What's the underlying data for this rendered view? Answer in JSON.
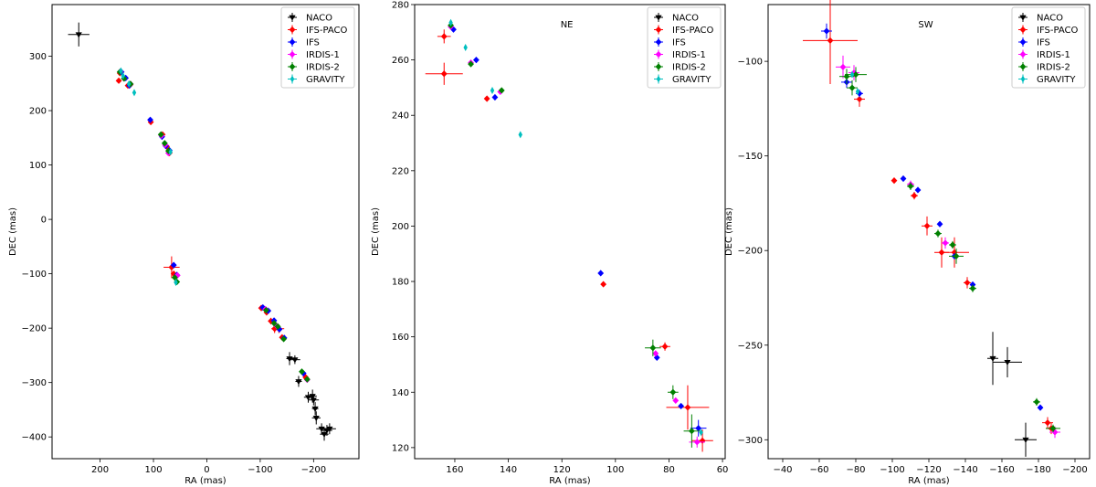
{
  "legend_entries": [
    {
      "name": "NACO",
      "color": "#000000",
      "marker": "triangle-down"
    },
    {
      "name": "IFS-PACO",
      "color": "#ff0000",
      "marker": "diamond"
    },
    {
      "name": "IFS",
      "color": "#0000ff",
      "marker": "diamond"
    },
    {
      "name": "IRDIS-1",
      "color": "#ff00ff",
      "marker": "diamond"
    },
    {
      "name": "IRDIS-2",
      "color": "#008000",
      "marker": "diamond"
    },
    {
      "name": "GRAVITY",
      "color": "#00bfbf",
      "marker": "thin-diamond"
    }
  ],
  "chart_data": [
    {
      "type": "scatter",
      "title": "",
      "xlabel": "RA (mas)",
      "ylabel": "DEC (mas)",
      "xlim": [
        290,
        -285
      ],
      "ylim": [
        -440,
        395
      ],
      "xticks": [
        200,
        100,
        0,
        -100,
        -200
      ],
      "xtick_labels": [
        "200",
        "100",
        "0",
        "−100",
        "−200"
      ],
      "yticks": [
        -400,
        -300,
        -200,
        -100,
        0,
        100,
        200,
        300
      ],
      "ytick_labels": [
        "−400",
        "−300",
        "−200",
        "−100",
        "0",
        "100",
        "200",
        "300"
      ],
      "legend": "top-right",
      "series": [
        {
          "name": "NACO",
          "points": [
            {
              "x": 240,
              "y": 340,
              "xe": 20,
              "ye": 22
            },
            {
              "x": -155,
              "y": -256,
              "xe": 6,
              "ye": 12
            },
            {
              "x": -165,
              "y": -258,
              "xe": 10,
              "ye": 8
            },
            {
              "x": -172,
              "y": -298,
              "xe": 6,
              "ye": 10
            },
            {
              "x": -190,
              "y": -327,
              "xe": 8,
              "ye": 10
            },
            {
              "x": -198,
              "y": -325,
              "xe": 8,
              "ye": 12
            },
            {
              "x": -200,
              "y": -332,
              "xe": 10,
              "ye": 10
            },
            {
              "x": -203,
              "y": -348,
              "xe": 6,
              "ye": 12
            },
            {
              "x": -205,
              "y": -365,
              "xe": 8,
              "ye": 12
            },
            {
              "x": -215,
              "y": -385,
              "xe": 10,
              "ye": 10
            },
            {
              "x": -220,
              "y": -395,
              "xe": 8,
              "ye": 12
            },
            {
              "x": -225,
              "y": -388,
              "xe": 10,
              "ye": 10
            },
            {
              "x": -230,
              "y": -385,
              "xe": 12,
              "ye": 10
            }
          ]
        },
        {
          "name": "IFS-PACO",
          "points": [
            {
              "x": 165,
              "y": 255
            },
            {
              "x": 163,
              "y": 269
            },
            {
              "x": 148,
              "y": 246
            },
            {
              "x": 143,
              "y": 248
            },
            {
              "x": 105,
              "y": 179
            },
            {
              "x": 83,
              "y": 156
            },
            {
              "x": 75,
              "y": 134
            },
            {
              "x": 70,
              "y": 122
            },
            {
              "x": 66,
              "y": -88,
              "xe": 15,
              "ye": 20
            },
            {
              "x": 62,
              "y": -100,
              "xe": 4,
              "ye": 4
            },
            {
              "x": -102,
              "y": -163
            },
            {
              "x": -112,
              "y": -171
            },
            {
              "x": -120,
              "y": -187,
              "xe": 5,
              "ye": 6
            },
            {
              "x": -127,
              "y": -201,
              "xe": 6,
              "ye": 8
            },
            {
              "x": -135,
              "y": -201,
              "xe": 10,
              "ye": 8
            },
            {
              "x": -141,
              "y": -217
            },
            {
              "x": -185,
              "y": -290
            },
            {
              "x": -187,
              "y": -293
            }
          ]
        },
        {
          "name": "IFS",
          "points": [
            {
              "x": 160,
              "y": 271
            },
            {
              "x": 152,
              "y": 260
            },
            {
              "x": 145,
              "y": 246
            },
            {
              "x": 106,
              "y": 183
            },
            {
              "x": 84,
              "y": 152
            },
            {
              "x": 77,
              "y": 135
            },
            {
              "x": 70,
              "y": 127
            },
            {
              "x": 62,
              "y": -84,
              "xe": 4,
              "ye": 4
            },
            {
              "x": 56,
              "y": -102
            },
            {
              "x": -105,
              "y": -162
            },
            {
              "x": -115,
              "y": -168
            },
            {
              "x": -126,
              "y": -186
            },
            {
              "x": -136,
              "y": -202
            },
            {
              "x": -145,
              "y": -218
            },
            {
              "x": -181,
              "y": -283
            }
          ]
        },
        {
          "name": "IRDIS-1",
          "points": [
            {
              "x": 162,
              "y": 272
            },
            {
              "x": 155,
              "y": 259
            },
            {
              "x": 143,
              "y": 249
            },
            {
              "x": 85,
              "y": 154
            },
            {
              "x": 78,
              "y": 137
            },
            {
              "x": 72,
              "y": 122
            },
            {
              "x": 55,
              "y": -103
            },
            {
              "x": -110,
              "y": -165
            },
            {
              "x": -130,
              "y": -195
            },
            {
              "x": -188,
              "y": -295
            }
          ]
        },
        {
          "name": "IRDIS-2",
          "points": [
            {
              "x": 163,
              "y": 271
            },
            {
              "x": 155,
              "y": 259
            },
            {
              "x": 143,
              "y": 249
            },
            {
              "x": 86,
              "y": 156
            },
            {
              "x": 79,
              "y": 140
            },
            {
              "x": 72,
              "y": 126
            },
            {
              "x": 60,
              "y": -107
            },
            {
              "x": 56,
              "y": -115
            },
            {
              "x": -111,
              "y": -167
            },
            {
              "x": -126,
              "y": -191
            },
            {
              "x": -133,
              "y": -197
            },
            {
              "x": -144,
              "y": -220
            },
            {
              "x": -178,
              "y": -280
            },
            {
              "x": -188,
              "y": -294
            }
          ]
        },
        {
          "name": "GRAVITY",
          "points": [
            {
              "x": 161,
              "y": 273
            },
            {
              "x": 157,
              "y": 264
            },
            {
              "x": 146,
              "y": 249
            },
            {
              "x": 136,
              "y": 233
            },
            {
              "x": 68,
              "y": 124
            },
            {
              "x": 58,
              "y": -116
            }
          ]
        }
      ]
    },
    {
      "type": "scatter",
      "title": "NE",
      "xlabel": "RA (mas)",
      "ylabel": "DEC (mas)",
      "xlim": [
        175,
        59
      ],
      "ylim": [
        116,
        280
      ],
      "xticks": [
        160,
        140,
        120,
        100,
        80,
        60
      ],
      "xtick_labels": [
        "160",
        "140",
        "120",
        "100",
        "80",
        "60"
      ],
      "yticks": [
        120,
        140,
        160,
        180,
        200,
        220,
        240,
        260,
        280
      ],
      "ytick_labels": [
        "120",
        "140",
        "160",
        "180",
        "200",
        "220",
        "240",
        "260",
        "280"
      ],
      "legend": "top-right",
      "series": [
        {
          "name": "NACO",
          "points": []
        },
        {
          "name": "IFS-PACO",
          "points": [
            {
              "x": 164,
              "y": 268.5,
              "xe": 2.5,
              "ye": 2.5
            },
            {
              "x": 164,
              "y": 255,
              "xe": 7,
              "ye": 4
            },
            {
              "x": 148,
              "y": 246
            },
            {
              "x": 104.5,
              "y": 179
            },
            {
              "x": 81.5,
              "y": 156.5,
              "xe": 2,
              "ye": 1.5
            },
            {
              "x": 73,
              "y": 134.5,
              "xe": 8,
              "ye": 8
            },
            {
              "x": 67.5,
              "y": 122.5,
              "xe": 4,
              "ye": 4
            }
          ]
        },
        {
          "name": "IFS",
          "points": [
            {
              "x": 160.5,
              "y": 271
            },
            {
              "x": 152,
              "y": 260
            },
            {
              "x": 145,
              "y": 246.5
            },
            {
              "x": 105.5,
              "y": 183
            },
            {
              "x": 84.5,
              "y": 152.5
            },
            {
              "x": 75.5,
              "y": 135
            },
            {
              "x": 69,
              "y": 127,
              "xe": 3,
              "ye": 3
            }
          ]
        },
        {
          "name": "IRDIS-1",
          "points": [
            {
              "x": 161.5,
              "y": 272
            },
            {
              "x": 154,
              "y": 259
            },
            {
              "x": 143,
              "y": 248.5
            },
            {
              "x": 85,
              "y": 154
            },
            {
              "x": 77.5,
              "y": 137
            },
            {
              "x": 69.5,
              "y": 122,
              "xe": 3,
              "ye": 2
            }
          ]
        },
        {
          "name": "IRDIS-2",
          "points": [
            {
              "x": 161.5,
              "y": 272.5
            },
            {
              "x": 154,
              "y": 258.5
            },
            {
              "x": 142.5,
              "y": 249
            },
            {
              "x": 86,
              "y": 156,
              "xe": 3,
              "ye": 3
            },
            {
              "x": 78.5,
              "y": 140,
              "xe": 2,
              "ye": 2.5
            },
            {
              "x": 71.5,
              "y": 126,
              "xe": 3,
              "ye": 6
            }
          ]
        },
        {
          "name": "GRAVITY",
          "points": [
            {
              "x": 161.5,
              "y": 273.5
            },
            {
              "x": 156,
              "y": 264.5
            },
            {
              "x": 146,
              "y": 249
            },
            {
              "x": 135.5,
              "y": 233
            },
            {
              "x": 68,
              "y": 125.5
            }
          ]
        }
      ]
    },
    {
      "type": "scatter",
      "title": "SW",
      "xlabel": "RA (mas)",
      "ylabel": "DEC (mas)",
      "xlim": [
        -32,
        -208
      ],
      "ylim": [
        -310,
        -70
      ],
      "xticks": [
        -40,
        -60,
        -80,
        -100,
        -120,
        -140,
        -160,
        -180,
        -200
      ],
      "xtick_labels": [
        "−40",
        "−60",
        "−80",
        "−100",
        "−120",
        "−140",
        "−160",
        "−180",
        "−200"
      ],
      "yticks": [
        -300,
        -250,
        -200,
        -150,
        -100
      ],
      "ytick_labels": [
        "−300",
        "−250",
        "−200",
        "−150",
        "−100"
      ],
      "legend": "top-right",
      "series": [
        {
          "name": "NACO",
          "points": [
            {
              "x": -155,
              "y": -257,
              "xe": 3,
              "ye": 14
            },
            {
              "x": -163,
              "y": -259,
              "xe": 8,
              "ye": 8
            },
            {
              "x": -173,
              "y": -300,
              "xe": 6,
              "ye": 9
            }
          ]
        },
        {
          "name": "IFS-PACO",
          "points": [
            {
              "x": -66,
              "y": -89,
              "xe": 15,
              "ye": 23
            },
            {
              "x": -82,
              "y": -120,
              "xe": 3,
              "ye": 4
            },
            {
              "x": -101,
              "y": -163
            },
            {
              "x": -112,
              "y": -171,
              "xe": 2,
              "ye": 2
            },
            {
              "x": -119,
              "y": -187,
              "xe": 3,
              "ye": 5
            },
            {
              "x": -127,
              "y": -201,
              "xe": 4,
              "ye": 8
            },
            {
              "x": -134,
              "y": -201,
              "xe": 8,
              "ye": 8
            },
            {
              "x": -141,
              "y": -217,
              "xe": 2,
              "ye": 3
            },
            {
              "x": -185,
              "y": -291,
              "xe": 3,
              "ye": 3
            },
            {
              "x": -187,
              "y": -294,
              "xe": 3,
              "ye": 3
            }
          ]
        },
        {
          "name": "IFS",
          "points": [
            {
              "x": -64,
              "y": -84,
              "xe": 3,
              "ye": 4
            },
            {
              "x": -75,
              "y": -111,
              "xe": 3,
              "ye": 3
            },
            {
              "x": -82,
              "y": -117,
              "xe": 2,
              "ye": 2
            },
            {
              "x": -106,
              "y": -162
            },
            {
              "x": -114,
              "y": -168
            },
            {
              "x": -126,
              "y": -186
            },
            {
              "x": -134,
              "y": -203
            },
            {
              "x": -144,
              "y": -218
            },
            {
              "x": -181,
              "y": -283
            }
          ]
        },
        {
          "name": "IRDIS-1",
          "points": [
            {
              "x": -73,
              "y": -103,
              "xe": 4,
              "ye": 6
            },
            {
              "x": -79,
              "y": -106,
              "xe": 3,
              "ye": 4
            },
            {
              "x": -110,
              "y": -165,
              "xe": 2,
              "ye": 2
            },
            {
              "x": -129,
              "y": -196,
              "xe": 2,
              "ye": 3
            },
            {
              "x": -189,
              "y": -296,
              "xe": 3,
              "ye": 3
            }
          ]
        },
        {
          "name": "IRDIS-2",
          "points": [
            {
              "x": -75,
              "y": -108,
              "xe": 4,
              "ye": 4
            },
            {
              "x": -80,
              "y": -107,
              "xe": 6,
              "ye": 4
            },
            {
              "x": -78,
              "y": -114,
              "xe": 3,
              "ye": 4
            },
            {
              "x": -110,
              "y": -166,
              "xe": 2,
              "ye": 2
            },
            {
              "x": -125,
              "y": -191,
              "xe": 2,
              "ye": 2
            },
            {
              "x": -133,
              "y": -197,
              "xe": 2,
              "ye": 2
            },
            {
              "x": -135,
              "y": -203,
              "xe": 4,
              "ye": 4
            },
            {
              "x": -144,
              "y": -220,
              "xe": 2,
              "ye": 2
            },
            {
              "x": -179,
              "y": -280,
              "xe": 2,
              "ye": 2
            },
            {
              "x": -188,
              "y": -294,
              "xe": 4,
              "ye": 2
            }
          ]
        },
        {
          "name": "GRAVITY",
          "points": [
            {
              "x": -78,
              "y": -107
            },
            {
              "x": -81,
              "y": -116
            }
          ]
        }
      ]
    }
  ]
}
